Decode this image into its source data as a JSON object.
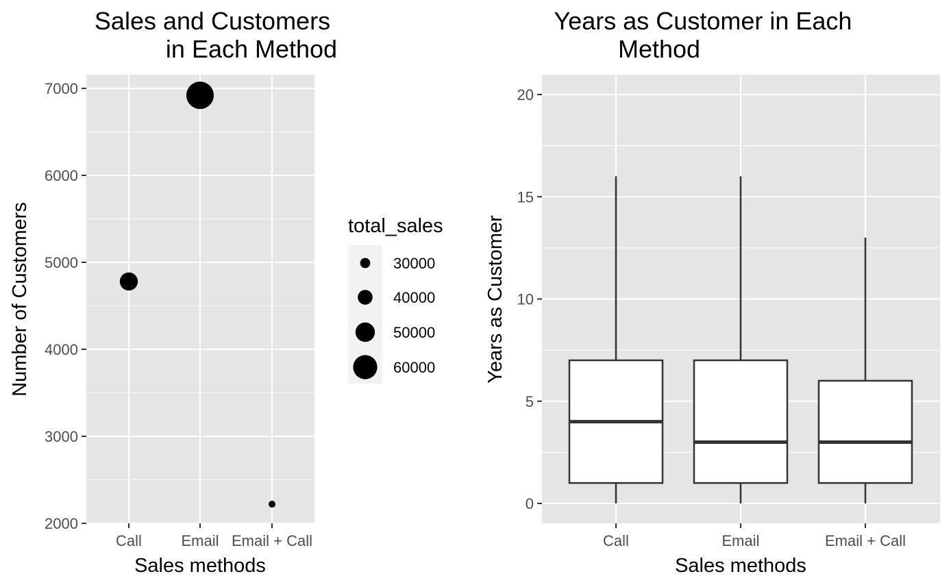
{
  "chart_data": [
    {
      "type": "scatter",
      "title": [
        "Sales and Customers",
        "in Each Method"
      ],
      "xlabel": "Sales methods",
      "ylabel": "Number of Customers",
      "categories": [
        "Call",
        "Email",
        "Email + Call"
      ],
      "ylim": [
        2000,
        7000
      ],
      "yticks": [
        2000,
        3000,
        4000,
        5000,
        6000,
        7000
      ],
      "points": [
        {
          "category": "Call",
          "customers": 4780,
          "total_sales": 47000
        },
        {
          "category": "Email",
          "customers": 6920,
          "total_sales": 67000
        },
        {
          "category": "Email + Call",
          "customers": 2220,
          "total_sales": 23000
        }
      ],
      "legend": {
        "title": "total_sales",
        "placement": "right",
        "entries": [
          30000,
          40000,
          50000,
          60000
        ]
      },
      "grid": true
    },
    {
      "type": "box",
      "title": [
        "Years as Customer in Each",
        "Method"
      ],
      "xlabel": "Sales methods",
      "ylabel": "Years as Customer",
      "categories": [
        "Call",
        "Email",
        "Email + Call"
      ],
      "ylim": [
        0,
        20
      ],
      "yticks": [
        0,
        5,
        10,
        15,
        20
      ],
      "boxes": [
        {
          "category": "Call",
          "min": 0,
          "q1": 1,
          "median": 4,
          "q3": 7,
          "max": 16
        },
        {
          "category": "Email",
          "min": 0,
          "q1": 1,
          "median": 3,
          "q3": 7,
          "max": 16
        },
        {
          "category": "Email + Call",
          "min": 0,
          "q1": 1,
          "median": 3,
          "q3": 6,
          "max": 13
        }
      ],
      "grid": true
    }
  ],
  "colors": {
    "panel_background": "#e5e5e5",
    "gridline": "#ffffff",
    "point": "#000000",
    "box_fill": "#ffffff",
    "box_stroke": "#333333",
    "tick_text": "#4d4d4d"
  }
}
